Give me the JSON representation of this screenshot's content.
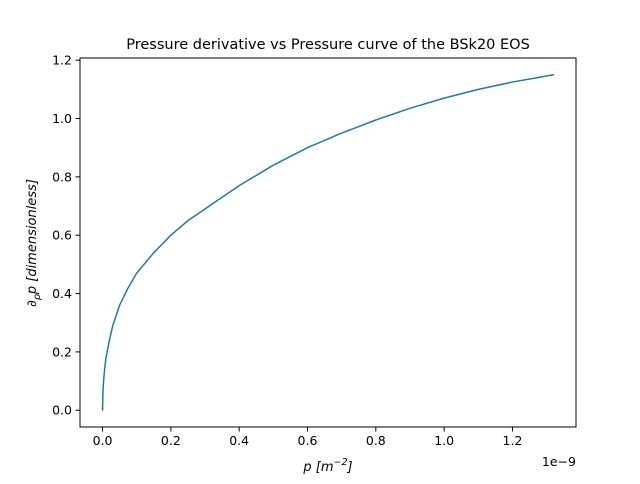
{
  "chart_data": {
    "type": "line",
    "title": "Pressure derivative vs Pressure curve of the BSk20 EOS",
    "xlabel": {
      "base": "p [m",
      "sup": "−2",
      "end": "]"
    },
    "ylabel": {
      "a": "∂",
      "a_sub": "ρ",
      "b": "p ",
      "c": "[dimensionless]"
    },
    "x_offset_label": "1e−9",
    "x_scale": 1e-09,
    "xlim": [
      -0.066,
      1.386
    ],
    "ylim": [
      -0.0575,
      1.2075
    ],
    "x_ticks": [
      0.0,
      0.2,
      0.4,
      0.6,
      0.8,
      1.0,
      1.2
    ],
    "x_tick_labels": [
      "0.0",
      "0.2",
      "0.4",
      "0.6",
      "0.8",
      "1.0",
      "1.2"
    ],
    "y_ticks": [
      0.0,
      0.2,
      0.4,
      0.6,
      0.8,
      1.0,
      1.2
    ],
    "y_tick_labels": [
      "0.0",
      "0.2",
      "0.4",
      "0.6",
      "0.8",
      "1.0",
      "1.2"
    ],
    "grid": false,
    "legend": "none",
    "series": [
      {
        "color": "#1f77b4",
        "x": [
          0.0,
          0.001,
          0.003,
          0.006,
          0.01,
          0.02,
          0.03,
          0.05,
          0.075,
          0.1,
          0.15,
          0.2,
          0.25,
          0.3,
          0.35,
          0.4,
          0.5,
          0.6,
          0.7,
          0.8,
          0.9,
          1.0,
          1.1,
          1.2,
          1.32
        ],
        "y": [
          0.0,
          0.06,
          0.1,
          0.14,
          0.18,
          0.24,
          0.29,
          0.36,
          0.42,
          0.47,
          0.54,
          0.6,
          0.65,
          0.69,
          0.73,
          0.77,
          0.84,
          0.9,
          0.95,
          0.995,
          1.035,
          1.07,
          1.1,
          1.125,
          1.15
        ]
      }
    ]
  }
}
